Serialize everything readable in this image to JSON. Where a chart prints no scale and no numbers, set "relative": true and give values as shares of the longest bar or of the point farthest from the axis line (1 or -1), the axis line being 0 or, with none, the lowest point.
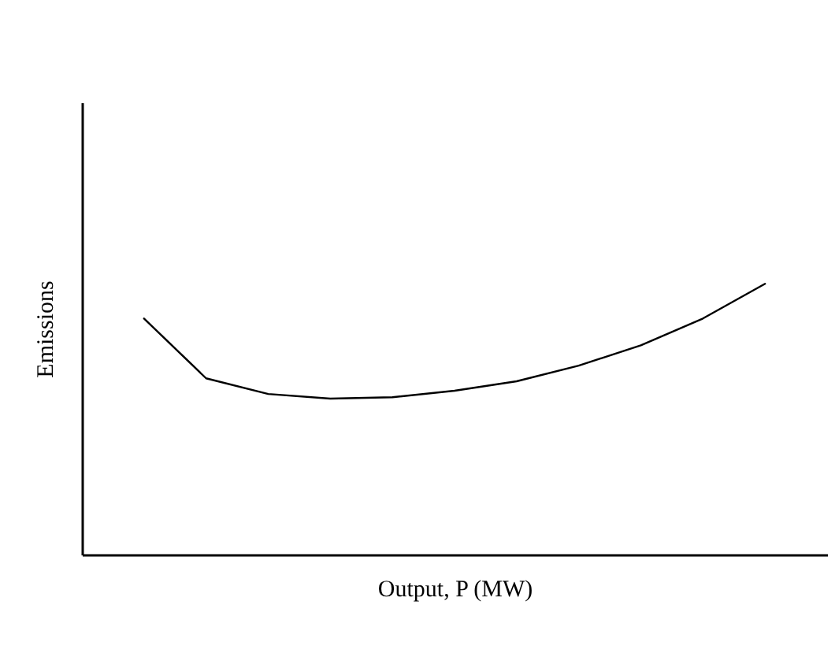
{
  "chart_data": {
    "type": "line",
    "xlabel": "Output, P (MW)",
    "ylabel": "Emissions",
    "relative": true,
    "categories": [
      null,
      null,
      null,
      null,
      null,
      null,
      null,
      null,
      null,
      null,
      null
    ],
    "series": [
      {
        "color": "#000000",
        "values": [
          0.872,
          0.651,
          0.593,
          0.576,
          0.581,
          0.605,
          0.64,
          0.698,
          0.773,
          0.872,
          1.0
        ]
      }
    ],
    "grid": false,
    "legend": false,
    "marker": "none",
    "line_style": "solid",
    "tick_labels": false
  }
}
